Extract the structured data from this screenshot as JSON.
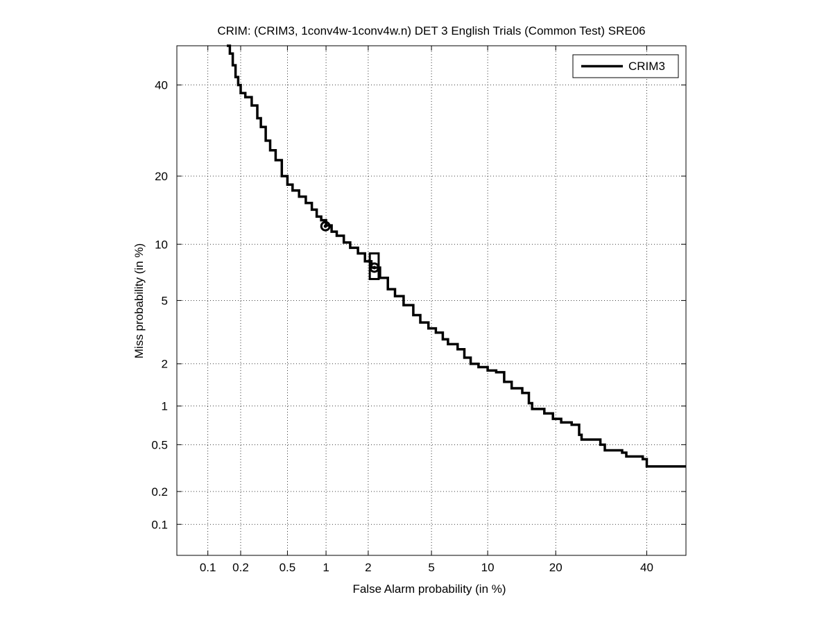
{
  "chart_data": {
    "type": "line",
    "title": "CRIM: (CRIM3, 1conv4w-1conv4w.n) DET 3 English Trials (Common Test) SRE06",
    "xlabel": "False Alarm probability (in %)",
    "ylabel": "Miss probability (in %)",
    "scale": "normal-deviate (probit)",
    "xlim": [
      0.05,
      50
    ],
    "ylim": [
      0.05,
      50
    ],
    "xticks": [
      0.1,
      0.2,
      0.5,
      1,
      2,
      5,
      10,
      20,
      40
    ],
    "xtick_labels": [
      "0.1",
      "0.2",
      "0.5",
      "1",
      "2",
      "5",
      "10",
      "20",
      "40"
    ],
    "yticks": [
      0.1,
      0.2,
      0.5,
      1,
      2,
      5,
      10,
      20,
      40
    ],
    "ytick_labels": [
      "0.1",
      "0.2",
      "0.5",
      "1",
      "2",
      "5",
      "10",
      "20",
      "40"
    ],
    "grid": true,
    "legend_position": "top-right",
    "series": [
      {
        "name": "CRIM3",
        "color": "#000000",
        "x": [
          0.15,
          0.16,
          0.17,
          0.18,
          0.19,
          0.2,
          0.22,
          0.25,
          0.28,
          0.3,
          0.33,
          0.36,
          0.4,
          0.45,
          0.5,
          0.55,
          0.62,
          0.7,
          0.78,
          0.85,
          0.92,
          1.0,
          1.1,
          1.2,
          1.35,
          1.5,
          1.7,
          1.9,
          2.1,
          2.4,
          2.7,
          3.0,
          3.4,
          3.9,
          4.3,
          4.8,
          5.3,
          5.8,
          6.2,
          7.0,
          7.6,
          8.2,
          9.0,
          10.0,
          11.0,
          12.0,
          13.0,
          14.5,
          15.5,
          16.0,
          18.0,
          19.5,
          21.0,
          23.0,
          24.5,
          25.0,
          29.0,
          30.0,
          34.0,
          35.0,
          39.0,
          40.0,
          50.0
        ],
        "y": [
          50.0,
          48.0,
          45.0,
          42.0,
          40.0,
          38.0,
          37.0,
          35.0,
          32.0,
          30.0,
          27.0,
          25.0,
          23.0,
          20.0,
          18.5,
          17.5,
          16.5,
          15.5,
          14.5,
          13.5,
          13.0,
          12.3,
          11.5,
          11.0,
          10.2,
          9.6,
          9.0,
          8.2,
          7.6,
          6.7,
          5.8,
          5.3,
          4.7,
          4.1,
          3.7,
          3.4,
          3.2,
          2.9,
          2.7,
          2.5,
          2.2,
          2.0,
          1.9,
          1.8,
          1.75,
          1.5,
          1.35,
          1.25,
          1.05,
          0.95,
          0.88,
          0.8,
          0.75,
          0.72,
          0.6,
          0.55,
          0.5,
          0.45,
          0.43,
          0.4,
          0.38,
          0.33,
          0.33
        ]
      }
    ],
    "markers": [
      {
        "name": "min-DCF point",
        "shape": "circle",
        "x": 0.99,
        "y": 12.2
      },
      {
        "name": "actual-DCF point",
        "shape": "circle",
        "x": 2.2,
        "y": 7.6
      },
      {
        "name": "actual-DCF confidence box",
        "shape": "box",
        "x_range": [
          2.05,
          2.35
        ],
        "y_range": [
          6.6,
          9.0
        ]
      }
    ]
  },
  "legend": {
    "label": "CRIM3"
  }
}
